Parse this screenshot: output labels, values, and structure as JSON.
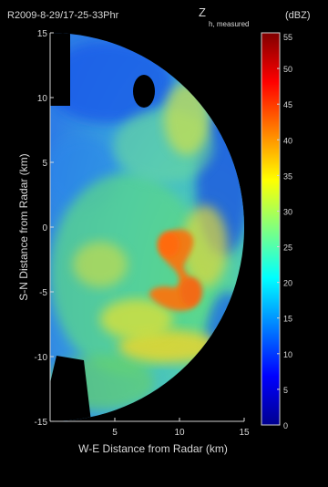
{
  "header": {
    "file_label": "R2009-8-29/17-25-33Phr",
    "variable_label": "Z",
    "variable_sub": "h, measured",
    "unit": "(dBZ)"
  },
  "colors": {
    "background": "#000000",
    "text": "#d8d8d8",
    "no_data": "#ffffff"
  },
  "chart_data": {
    "type": "heatmap",
    "title": "",
    "xlabel": "W-E Distance from Radar (km)",
    "ylabel": "S-N Distance from Radar (km)",
    "xlim": [
      -15,
      15
    ],
    "ylim": [
      -15,
      15
    ],
    "xticks": [
      {
        "value": 5,
        "label": "5"
      },
      {
        "value": 10,
        "label": "10"
      },
      {
        "value": 15,
        "label": "15"
      }
    ],
    "yticks": [
      {
        "value": 15,
        "label": "15"
      },
      {
        "value": 10,
        "label": "10"
      },
      {
        "value": 5,
        "label": "5"
      },
      {
        "value": 0,
        "label": "0"
      },
      {
        "value": -5,
        "label": "-5"
      },
      {
        "value": -10,
        "label": "-10"
      },
      {
        "value": -15,
        "label": "-15"
      }
    ],
    "colorbar": {
      "min": 0,
      "max": 55,
      "ticks": [
        0,
        5,
        10,
        15,
        20,
        25,
        30,
        35,
        40,
        45,
        50,
        55
      ],
      "labels": [
        "0",
        "5",
        "10",
        "15",
        "20",
        "25",
        "30",
        "35",
        "40",
        "45",
        "50",
        "55"
      ],
      "colormap": "jet"
    },
    "coverage": {
      "shape": "half-disc (east of radar)",
      "radius_km": 15
    },
    "features": [
      {
        "name": "high-reflectivity band",
        "dbz": 40
      },
      {
        "name": "moderate echo",
        "dbz": 30
      },
      {
        "name": "background echo",
        "dbz": 22
      },
      {
        "name": "weak echo",
        "dbz": 12
      }
    ]
  }
}
